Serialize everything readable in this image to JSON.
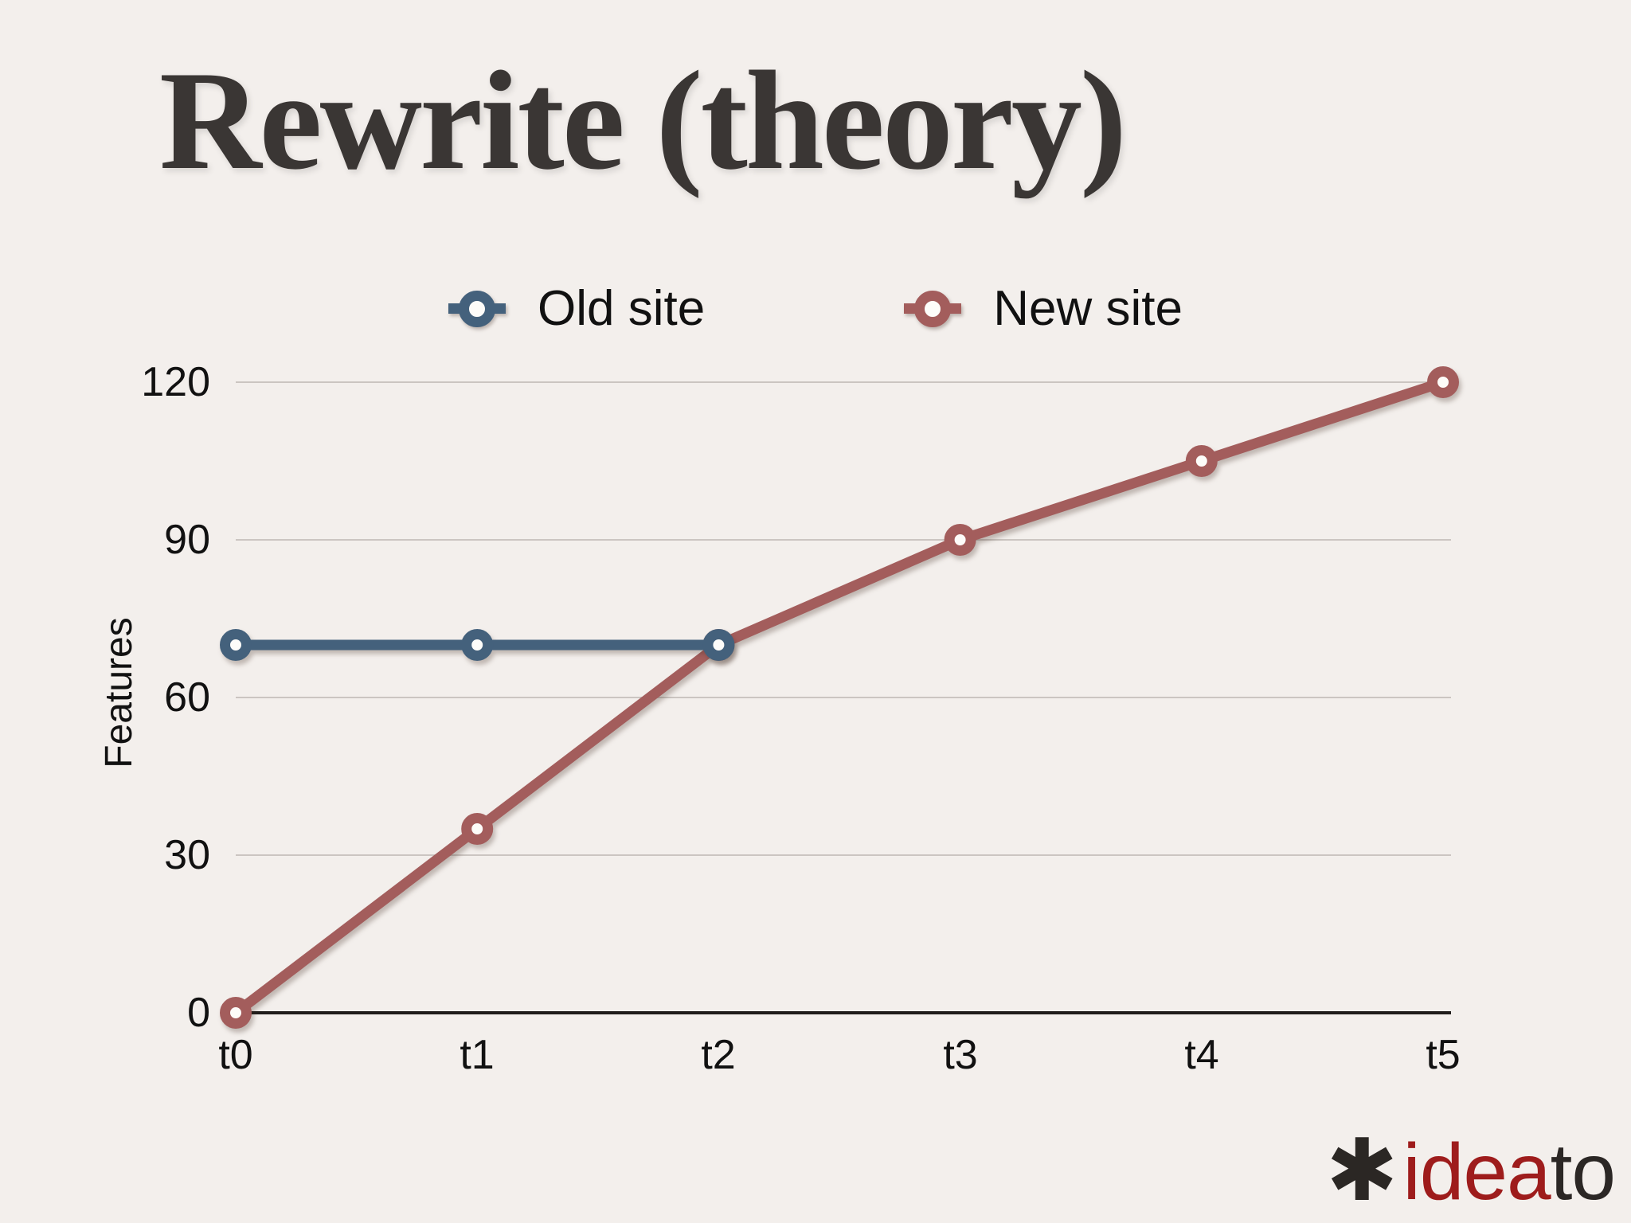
{
  "slide": {
    "title": "Rewrite (theory)",
    "background_color": "#f3efec"
  },
  "chart_data": {
    "type": "line",
    "categories": [
      "t0",
      "t1",
      "t2",
      "t3",
      "t4",
      "t5"
    ],
    "series": [
      {
        "name": "Old site",
        "color": "#44617c",
        "values": [
          70,
          70,
          70
        ]
      },
      {
        "name": "New site",
        "color": "#a35d5c",
        "values": [
          0,
          35,
          70,
          90,
          105,
          120
        ]
      }
    ],
    "title": "",
    "xlabel": "",
    "ylabel": "Features",
    "yticks": [
      0,
      30,
      60,
      90,
      120
    ],
    "ylim": [
      0,
      120
    ],
    "grid": true,
    "legend_position": "top",
    "marker": "ring",
    "marker_fill": "#fdfcf9",
    "grid_color": "#cbc5c1",
    "axis_color": "#201d1b"
  },
  "logo": {
    "asterisk_icon": "✱",
    "text_primary": "idea",
    "text_secondary": "to",
    "primary_color": "#9e1c1c",
    "secondary_color": "#2b2725"
  }
}
